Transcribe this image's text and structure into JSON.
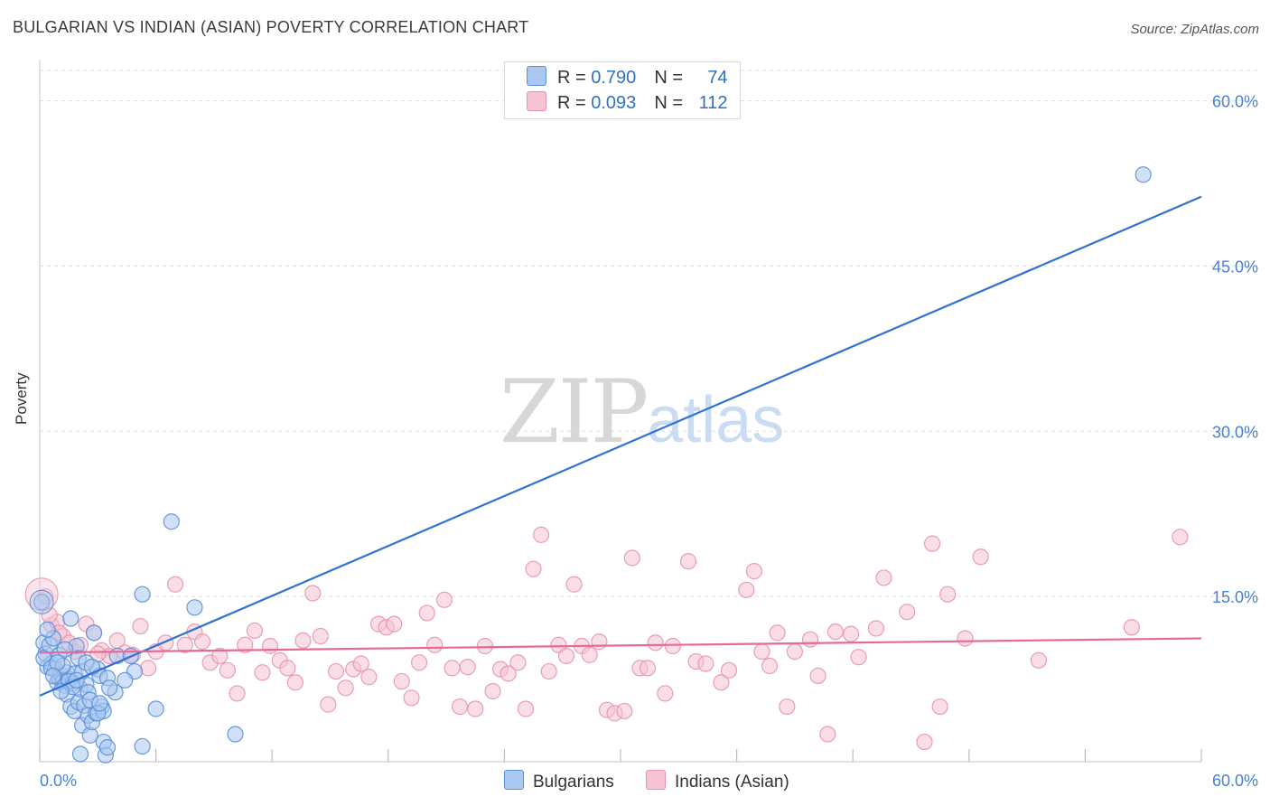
{
  "header": {
    "title": "BULGARIAN VS INDIAN (ASIAN) POVERTY CORRELATION CHART",
    "source": "Source: ZipAtlas.com"
  },
  "watermark": {
    "zip": "ZIP",
    "atlas": "atlas"
  },
  "legend": {
    "rows": [
      {
        "r_label": "R = ",
        "r_value": "0.790",
        "n_label": "N = ",
        "n_value": "74",
        "color": "#aac8f0"
      },
      {
        "r_label": "R = ",
        "r_value": "0.093",
        "n_label": "N = ",
        "n_value": "112",
        "color": "#f6bfd0"
      }
    ]
  },
  "colors": {
    "bulgarian_fill": "#aac8f0",
    "bulgarian_stroke": "#5b8fd6",
    "bulgarian_line": "#2f72d0",
    "indian_fill": "#f6c3d3",
    "indian_stroke": "#e893ad",
    "indian_line": "#e66a97",
    "tick_label": "#4a80d0",
    "grid": "#dddddd"
  },
  "chart_data": {
    "type": "scatter",
    "title": "BULGARIAN VS INDIAN (ASIAN) POVERTY CORRELATION CHART",
    "xlabel": "",
    "ylabel": "Poverty",
    "xlim": [
      0,
      60
    ],
    "ylim": [
      0,
      63
    ],
    "x_tick_labels": [
      "0.0%",
      "60.0%"
    ],
    "y_ticks": [
      15,
      30,
      45,
      60
    ],
    "y_tick_labels": [
      "15.0%",
      "30.0%",
      "45.0%",
      "60.0%"
    ],
    "legend_position": "top-center",
    "series": [
      {
        "name": "Bulgarians",
        "trendline": {
          "x": [
            0,
            60
          ],
          "y": [
            6.0,
            51.3
          ]
        },
        "points": [
          [
            0.1,
            14.5
          ],
          [
            0.2,
            10.8
          ],
          [
            0.3,
            9.8
          ],
          [
            0.4,
            8.6
          ],
          [
            0.5,
            10.6
          ],
          [
            0.6,
            8.9
          ],
          [
            0.7,
            11.2
          ],
          [
            0.8,
            8.4
          ],
          [
            0.9,
            7.2
          ],
          [
            1.0,
            9.7
          ],
          [
            1.0,
            7.6
          ],
          [
            1.1,
            7.9
          ],
          [
            1.2,
            7.3
          ],
          [
            1.3,
            6.9
          ],
          [
            1.4,
            8.1
          ],
          [
            1.4,
            6.1
          ],
          [
            1.5,
            7.5
          ],
          [
            1.6,
            5.0
          ],
          [
            1.6,
            13.0
          ],
          [
            1.7,
            7.1
          ],
          [
            1.8,
            8.0
          ],
          [
            1.8,
            4.6
          ],
          [
            1.9,
            10.5
          ],
          [
            2.0,
            9.4
          ],
          [
            2.0,
            5.4
          ],
          [
            2.1,
            6.6
          ],
          [
            2.1,
            0.7
          ],
          [
            2.2,
            3.3
          ],
          [
            2.3,
            5.1
          ],
          [
            2.4,
            7.0
          ],
          [
            2.5,
            6.3
          ],
          [
            2.5,
            4.2
          ],
          [
            2.6,
            2.4
          ],
          [
            2.7,
            3.6
          ],
          [
            2.8,
            11.7
          ],
          [
            2.9,
            4.4
          ],
          [
            3.0,
            8.4
          ],
          [
            3.1,
            7.8
          ],
          [
            3.2,
            5.0
          ],
          [
            3.3,
            4.6
          ],
          [
            3.3,
            1.8
          ],
          [
            3.4,
            0.6
          ],
          [
            3.5,
            7.6
          ],
          [
            3.5,
            1.3
          ],
          [
            3.9,
            6.3
          ],
          [
            4.0,
            9.6
          ],
          [
            4.7,
            9.6
          ],
          [
            4.9,
            8.2
          ],
          [
            5.3,
            15.2
          ],
          [
            5.3,
            1.4
          ],
          [
            6.0,
            4.8
          ],
          [
            6.8,
            21.8
          ],
          [
            8.0,
            14.0
          ],
          [
            10.1,
            2.5
          ],
          [
            57.0,
            53.3
          ],
          [
            0.2,
            9.4
          ],
          [
            0.6,
            8.5
          ],
          [
            1.2,
            8.7
          ],
          [
            1.5,
            7.3
          ],
          [
            2.2,
            8.2
          ],
          [
            2.6,
            5.6
          ],
          [
            3.0,
            4.4
          ],
          [
            0.9,
            9.0
          ],
          [
            1.7,
            6.8
          ],
          [
            2.4,
            9.0
          ],
          [
            3.6,
            6.7
          ],
          [
            0.4,
            12.0
          ],
          [
            1.3,
            10.2
          ],
          [
            1.9,
            7.4
          ],
          [
            2.7,
            8.6
          ],
          [
            3.1,
            5.3
          ],
          [
            4.4,
            7.4
          ],
          [
            0.7,
            7.8
          ],
          [
            1.1,
            6.4
          ]
        ]
      },
      {
        "name": "Indians (Asian)",
        "trendline": {
          "x": [
            0,
            60
          ],
          "y": [
            9.9,
            11.2
          ]
        },
        "points": [
          [
            0.3,
            15.0
          ],
          [
            0.6,
            12.4
          ],
          [
            0.9,
            12.7
          ],
          [
            1.2,
            11.4
          ],
          [
            1.5,
            10.8
          ],
          [
            1.8,
            10.0
          ],
          [
            2.1,
            10.6
          ],
          [
            2.4,
            12.5
          ],
          [
            2.8,
            11.7
          ],
          [
            3.2,
            10.1
          ],
          [
            3.6,
            9.6
          ],
          [
            4.0,
            11.0
          ],
          [
            4.4,
            9.9
          ],
          [
            4.8,
            9.7
          ],
          [
            5.2,
            12.3
          ],
          [
            5.6,
            8.5
          ],
          [
            6.0,
            10.0
          ],
          [
            6.5,
            10.8
          ],
          [
            7.0,
            16.1
          ],
          [
            7.5,
            10.6
          ],
          [
            8.0,
            11.8
          ],
          [
            8.4,
            10.9
          ],
          [
            8.8,
            9.0
          ],
          [
            9.3,
            9.6
          ],
          [
            9.7,
            8.3
          ],
          [
            10.2,
            6.2
          ],
          [
            10.6,
            10.6
          ],
          [
            11.1,
            11.9
          ],
          [
            11.5,
            8.1
          ],
          [
            11.9,
            10.5
          ],
          [
            12.4,
            9.2
          ],
          [
            12.8,
            8.5
          ],
          [
            13.2,
            7.2
          ],
          [
            13.6,
            11.0
          ],
          [
            14.1,
            15.3
          ],
          [
            14.5,
            11.4
          ],
          [
            14.9,
            5.2
          ],
          [
            15.3,
            8.2
          ],
          [
            15.8,
            6.7
          ],
          [
            16.2,
            8.4
          ],
          [
            16.6,
            8.9
          ],
          [
            17.0,
            7.7
          ],
          [
            17.5,
            12.5
          ],
          [
            17.9,
            12.2
          ],
          [
            18.3,
            12.5
          ],
          [
            18.7,
            7.3
          ],
          [
            19.2,
            5.8
          ],
          [
            19.6,
            9.0
          ],
          [
            20.0,
            13.5
          ],
          [
            20.4,
            10.6
          ],
          [
            20.9,
            14.7
          ],
          [
            21.3,
            8.5
          ],
          [
            21.7,
            5.0
          ],
          [
            22.1,
            8.6
          ],
          [
            22.5,
            4.8
          ],
          [
            23.0,
            10.5
          ],
          [
            23.4,
            6.4
          ],
          [
            23.8,
            8.4
          ],
          [
            24.2,
            8.0
          ],
          [
            24.7,
            9.0
          ],
          [
            25.1,
            4.8
          ],
          [
            25.5,
            17.5
          ],
          [
            25.9,
            20.6
          ],
          [
            26.3,
            8.2
          ],
          [
            26.8,
            10.6
          ],
          [
            27.2,
            9.6
          ],
          [
            27.6,
            16.1
          ],
          [
            28.0,
            10.5
          ],
          [
            28.4,
            9.7
          ],
          [
            28.9,
            10.9
          ],
          [
            29.3,
            4.7
          ],
          [
            29.7,
            4.4
          ],
          [
            30.2,
            4.6
          ],
          [
            30.6,
            18.5
          ],
          [
            31.0,
            8.5
          ],
          [
            31.4,
            8.5
          ],
          [
            31.8,
            10.8
          ],
          [
            32.3,
            6.2
          ],
          [
            32.7,
            10.5
          ],
          [
            33.5,
            18.2
          ],
          [
            33.9,
            9.1
          ],
          [
            34.4,
            8.9
          ],
          [
            35.2,
            7.2
          ],
          [
            35.6,
            8.3
          ],
          [
            36.5,
            15.6
          ],
          [
            36.9,
            17.3
          ],
          [
            37.3,
            10.0
          ],
          [
            37.7,
            8.7
          ],
          [
            38.1,
            11.7
          ],
          [
            38.6,
            5.0
          ],
          [
            39.0,
            10.0
          ],
          [
            39.8,
            11.1
          ],
          [
            40.2,
            7.8
          ],
          [
            40.7,
            2.5
          ],
          [
            41.1,
            11.8
          ],
          [
            41.9,
            11.6
          ],
          [
            42.3,
            9.5
          ],
          [
            43.2,
            12.1
          ],
          [
            43.6,
            16.7
          ],
          [
            44.8,
            13.6
          ],
          [
            45.7,
            1.8
          ],
          [
            46.1,
            19.8
          ],
          [
            46.5,
            5.0
          ],
          [
            46.9,
            15.2
          ],
          [
            47.8,
            11.2
          ],
          [
            48.6,
            18.6
          ],
          [
            51.6,
            9.2
          ],
          [
            56.4,
            12.2
          ],
          [
            58.9,
            20.4
          ],
          [
            0.5,
            13.3
          ],
          [
            1.0,
            11.7
          ],
          [
            3.0,
            9.8
          ]
        ]
      }
    ]
  },
  "bottom_legend": {
    "items": [
      {
        "label": "Bulgarians",
        "color": "#aac8f0"
      },
      {
        "label": "Indians (Asian)",
        "color": "#f6c3d3"
      }
    ]
  }
}
